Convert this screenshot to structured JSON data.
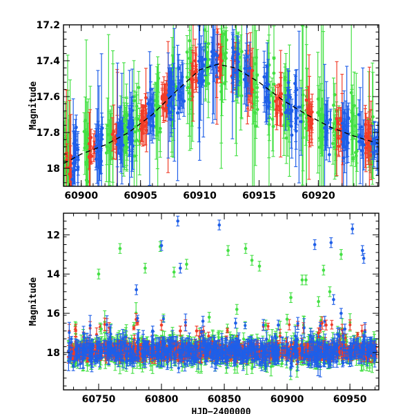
{
  "colors": {
    "green": "#44e044",
    "red": "#f03c28",
    "blue": "#1f5fe8"
  },
  "chart_data": [
    {
      "id": "top",
      "type": "scatter",
      "title": "",
      "xlabel": "",
      "ylabel": "Magnitude",
      "xlim": [
        60898.5,
        60925.1
      ],
      "ylim": [
        18.1,
        17.2
      ],
      "y_inverted": true,
      "x_ticks": [
        60900,
        60905,
        60910,
        60915,
        60920
      ],
      "x_tick_labels": [
        "60900",
        "60905",
        "60910",
        "60915",
        "60920"
      ],
      "y_ticks": [
        17.2,
        17.4,
        17.6,
        17.8,
        18.0
      ],
      "y_tick_labels": [
        "17.2",
        "17.4",
        "17.6",
        "17.8",
        "18"
      ],
      "trend_line": {
        "x": [
          60898.6,
          60900,
          60902,
          60904,
          60906,
          60908,
          60910,
          60911.5,
          60913,
          60915,
          60917,
          60919,
          60921,
          60923,
          60925
        ],
        "y": [
          17.97,
          17.92,
          17.87,
          17.8,
          17.7,
          17.57,
          17.45,
          17.42,
          17.44,
          17.52,
          17.62,
          17.7,
          17.77,
          17.82,
          17.86
        ]
      },
      "series": [
        {
          "color": "green",
          "cluster_x": [
            60898.8,
            60900.5,
            60902.4,
            60903.6,
            60904.7,
            60906.4,
            60907.8,
            60909.2,
            60910.6,
            60912.0,
            60913.3,
            60914.6,
            60916.0,
            60917.3,
            60918.8,
            60920.2,
            60921.5,
            60923.0,
            60924.5
          ]
        },
        {
          "color": "red",
          "cluster_x": [
            60899.0,
            60900.9,
            60902.9,
            60905.3,
            60907.1,
            60909.5,
            60911.6,
            60912.8,
            60914.2,
            60916.6,
            60919.2,
            60921.8,
            60924.2
          ]
        },
        {
          "color": "blue",
          "cluster_x": [
            60899.5,
            60901.5,
            60903.3,
            60904.2,
            60905.9,
            60907.6,
            60908.4,
            60910.2,
            60911.2,
            60913.0,
            60914.0,
            60915.6,
            60917.5,
            60918.3,
            60920.8,
            60922.3,
            60923.6,
            60924.8
          ]
        }
      ]
    },
    {
      "id": "bottom",
      "type": "scatter",
      "title": "",
      "xlabel": "HJD−2400000",
      "ylabel": "Magnitude",
      "xlim": [
        60722,
        60973
      ],
      "ylim": [
        19.9,
        10.9
      ],
      "y_inverted": true,
      "x_ticks": [
        60750,
        60800,
        60850,
        60900,
        60950
      ],
      "x_tick_labels": [
        "60750",
        "60800",
        "60850",
        "60900",
        "60950"
      ],
      "y_ticks": [
        12,
        14,
        16,
        18
      ],
      "y_tick_labels": [
        "12",
        "14",
        "16",
        "18"
      ],
      "baseline_mag": 17.95,
      "baseline_x_range": [
        60726,
        60971
      ],
      "series": [
        {
          "color": "green",
          "outliers": [
            [
              60750,
              14.0
            ],
            [
              60752,
              16.8
            ],
            [
              60767,
              12.7
            ],
            [
              60787,
              13.7
            ],
            [
              60799,
              12.6
            ],
            [
              60810,
              13.9
            ],
            [
              60820,
              13.5
            ],
            [
              60838,
              16.2
            ],
            [
              60853,
              12.8
            ],
            [
              60860,
              15.8
            ],
            [
              60867,
              12.7
            ],
            [
              60872,
              13.3
            ],
            [
              60878,
              13.6
            ],
            [
              60883,
              16.6
            ],
            [
              60900,
              16.3
            ],
            [
              60903,
              15.2
            ],
            [
              60912,
              14.3
            ],
            [
              60915,
              14.3
            ],
            [
              60925,
              15.4
            ],
            [
              60929,
              13.8
            ],
            [
              60934,
              14.9
            ],
            [
              60943,
              13.0
            ]
          ]
        },
        {
          "color": "blue",
          "outliers": [
            [
              60780,
              14.8
            ],
            [
              60793,
              16.9
            ],
            [
              60800,
              12.55
            ],
            [
              60813,
              11.3
            ],
            [
              60815,
              13.7
            ],
            [
              60833,
              16.4
            ],
            [
              60846,
              11.5
            ],
            [
              60859,
              16.5
            ],
            [
              60893,
              16.6
            ],
            [
              60922,
              12.5
            ],
            [
              60930,
              16.4
            ],
            [
              60935,
              12.4
            ],
            [
              60937,
              15.3
            ],
            [
              60943,
              16.0
            ],
            [
              60946,
              16.8
            ],
            [
              60952,
              11.7
            ],
            [
              60960,
              12.8
            ],
            [
              60961,
              13.2
            ]
          ]
        },
        {
          "color": "red",
          "outliers": [
            [
              60800,
              16.6
            ],
            [
              60815,
              16.9
            ],
            [
              60828,
              16.9
            ],
            [
              60925,
              17.0
            ],
            [
              60931,
              16.6
            ]
          ]
        }
      ]
    }
  ]
}
